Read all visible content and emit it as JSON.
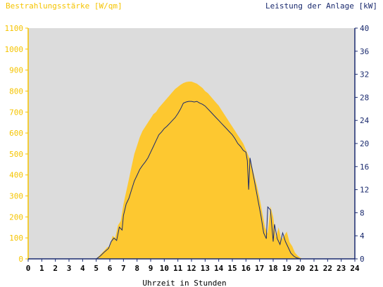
{
  "chart_data": {
    "type": "area",
    "left_axis_title": "Bestrahlungsstärke [W/qm]",
    "right_axis_title": "Leistung der Anlage [kW]",
    "xlabel": "Uhrzeit in Stunden",
    "xlim": [
      0,
      24
    ],
    "y_left_lim": [
      0,
      1100
    ],
    "y_right_lim": [
      0,
      40
    ],
    "x_ticks": [
      "0",
      "1",
      "2",
      "3",
      "4",
      "5",
      "6",
      "7",
      "8",
      "9",
      "10",
      "11",
      "12",
      "13",
      "14",
      "15",
      "16",
      "17",
      "18",
      "19",
      "20",
      "21",
      "22",
      "23",
      "24"
    ],
    "y_left_ticks": [
      "0",
      "100",
      "200",
      "300",
      "400",
      "500",
      "600",
      "700",
      "800",
      "900",
      "1000",
      "1100"
    ],
    "y_right_ticks": [
      "0",
      "4",
      "8",
      "12",
      "16",
      "20",
      "24",
      "28",
      "32",
      "36",
      "40"
    ],
    "grid": false,
    "colors": {
      "background": "#dcdcdc",
      "irradiance": "#fdc830",
      "power": "#1a2a6e",
      "left_axis": "#f5c400",
      "right_axis": "#1a2a6e"
    },
    "series": [
      {
        "name": "Bestrahlungsstärke [W/qm]",
        "axis": "left",
        "x": [
          0,
          5.0,
          5.3,
          5.6,
          5.8,
          6.0,
          6.2,
          6.4,
          6.6,
          6.8,
          7.0,
          7.2,
          7.4,
          7.6,
          7.8,
          8.0,
          8.2,
          8.4,
          8.6,
          8.8,
          9.0,
          9.2,
          9.4,
          9.6,
          9.8,
          10.0,
          10.2,
          10.4,
          10.6,
          10.8,
          11.0,
          11.2,
          11.4,
          11.6,
          11.8,
          12.0,
          12.2,
          12.4,
          12.6,
          12.8,
          13.0,
          13.2,
          13.4,
          13.6,
          13.8,
          14.0,
          14.2,
          14.4,
          14.6,
          14.8,
          15.0,
          15.2,
          15.4,
          15.6,
          15.8,
          16.0,
          16.2,
          16.4,
          16.6,
          16.8,
          17.0,
          17.2,
          17.4,
          17.6,
          17.8,
          18.0,
          18.2,
          18.4,
          18.6,
          18.8,
          19.0,
          19.2,
          19.4,
          19.6,
          19.8,
          20.0,
          20.2,
          24
        ],
        "y": [
          0,
          0,
          20,
          40,
          55,
          60,
          110,
          100,
          160,
          180,
          260,
          320,
          380,
          440,
          500,
          540,
          580,
          610,
          630,
          650,
          670,
          690,
          700,
          720,
          735,
          750,
          765,
          780,
          795,
          810,
          820,
          830,
          838,
          843,
          845,
          845,
          840,
          835,
          825,
          815,
          800,
          790,
          775,
          760,
          745,
          730,
          710,
          690,
          670,
          650,
          630,
          610,
          590,
          570,
          550,
          520,
          490,
          450,
          400,
          350,
          290,
          220,
          150,
          120,
          250,
          200,
          100,
          150,
          90,
          110,
          130,
          80,
          60,
          30,
          15,
          5,
          0,
          0
        ]
      },
      {
        "name": "Leistung der Anlage [kW]",
        "axis": "right",
        "x": [
          0,
          5.0,
          5.3,
          5.6,
          5.9,
          6.1,
          6.3,
          6.5,
          6.7,
          6.9,
          7.0,
          7.2,
          7.4,
          7.6,
          7.8,
          8.0,
          8.2,
          8.4,
          8.6,
          8.8,
          9.0,
          9.2,
          9.4,
          9.6,
          9.8,
          10.0,
          10.2,
          10.4,
          10.6,
          10.8,
          11.0,
          11.2,
          11.4,
          11.6,
          11.8,
          12.0,
          12.2,
          12.4,
          12.6,
          12.8,
          13.0,
          13.2,
          13.4,
          13.6,
          13.8,
          14.0,
          14.2,
          14.4,
          14.6,
          14.8,
          15.0,
          15.2,
          15.4,
          15.6,
          15.8,
          16.0,
          16.1,
          16.2,
          16.3,
          16.5,
          16.7,
          16.9,
          17.1,
          17.3,
          17.5,
          17.6,
          17.8,
          18.0,
          18.1,
          18.3,
          18.5,
          18.7,
          18.9,
          19.1,
          19.3,
          19.5,
          19.7,
          20.0,
          20.2,
          24
        ],
        "y": [
          0,
          0,
          0.5,
          1.2,
          1.8,
          3.0,
          3.6,
          3.2,
          5.5,
          5.0,
          7.5,
          9.5,
          10.5,
          12.0,
          13.5,
          14.5,
          15.5,
          16.2,
          16.8,
          17.5,
          18.5,
          19.5,
          20.5,
          21.5,
          22.0,
          22.6,
          23.0,
          23.5,
          24.0,
          24.5,
          25.2,
          26.0,
          27.0,
          27.2,
          27.3,
          27.3,
          27.2,
          27.3,
          27.0,
          26.8,
          26.5,
          26.0,
          25.5,
          25.0,
          24.5,
          24.0,
          23.5,
          23.0,
          22.5,
          22.0,
          21.5,
          20.8,
          20.0,
          19.5,
          18.8,
          18.5,
          17.0,
          12.0,
          17.5,
          15.0,
          12.5,
          10.0,
          7.5,
          4.5,
          3.5,
          9.0,
          8.5,
          3.0,
          6.0,
          3.5,
          2.5,
          4.5,
          3.0,
          2.0,
          1.0,
          0.5,
          0.2,
          0,
          0,
          0
        ]
      }
    ]
  }
}
